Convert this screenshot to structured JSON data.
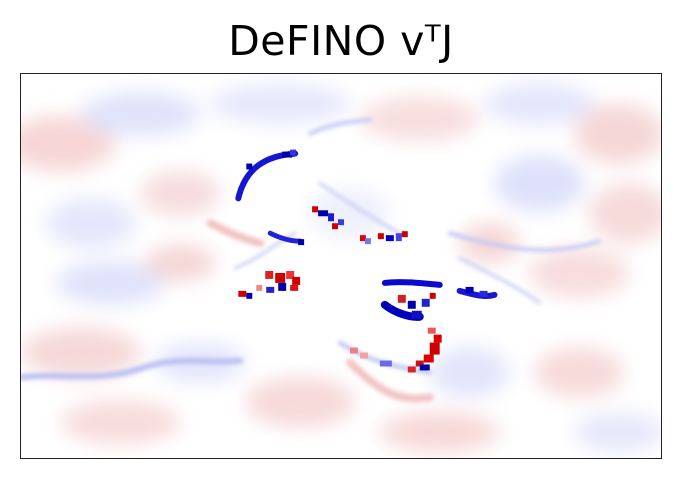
{
  "title": "DeFINO vᵀJ",
  "colormap": {
    "negative": "#0000cc",
    "zero": "#ffffff",
    "positive": "#dd0000"
  }
}
